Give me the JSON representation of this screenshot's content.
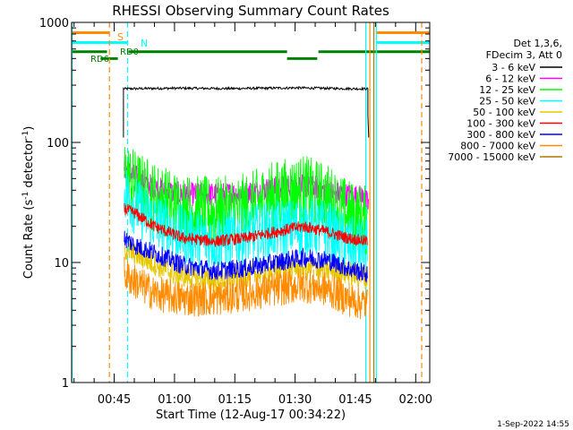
{
  "chart_data": {
    "type": "line",
    "title": "RHESSI Observing Summary Count Rates",
    "xlabel": "Start Time (12-Aug-17 00:34:22)",
    "ylabel_main": "Count Rate (s",
    "ylabel_sup1": "-1",
    "ylabel_mid": " detector",
    "ylabel_sup2": "-1",
    "ylabel_end": ")",
    "y_scale": "log",
    "ylim": [
      1,
      1000
    ],
    "xlim_minutes": [
      34.4,
      123.5
    ],
    "x_ticks": [
      {
        "minute": 45,
        "label": "00:45"
      },
      {
        "minute": 60,
        "label": "01:00"
      },
      {
        "minute": 75,
        "label": "01:15"
      },
      {
        "minute": 90,
        "label": "01:30"
      },
      {
        "minute": 105,
        "label": "01:45"
      },
      {
        "minute": 120,
        "label": "02:00"
      }
    ],
    "y_ticks": [
      {
        "value": 1,
        "label": "1"
      },
      {
        "value": 10,
        "label": "10"
      },
      {
        "value": 100,
        "label": "100"
      },
      {
        "value": 1000,
        "label": "1000"
      }
    ],
    "legend": {
      "placement": "right",
      "header": [
        "Det 1,3,6,",
        "FDecim 3, Att 0"
      ],
      "entries": [
        {
          "label": "3 - 6 keV",
          "color": "#000000"
        },
        {
          "label": "6 - 12 keV",
          "color": "#ff00ff"
        },
        {
          "label": "12 - 25 keV",
          "color": "#00ff00"
        },
        {
          "label": "25 - 50 keV",
          "color": "#00ffff"
        },
        {
          "label": "50 - 100 keV",
          "color": "#e6c800"
        },
        {
          "label": "100 - 300 keV",
          "color": "#ff0000"
        },
        {
          "label": "300 - 800 keV",
          "color": "#0000ff"
        },
        {
          "label": "800 - 7000 keV",
          "color": "#ff8c00"
        },
        {
          "label": "7000 - 15000 keV",
          "color": "#b07800"
        }
      ]
    },
    "series": [
      {
        "band": "3 - 6 keV",
        "color": "#000000",
        "noise": 0.02,
        "points": [
          [
            47.3,
            110
          ],
          [
            47.3,
            280
          ],
          [
            60,
            283
          ],
          [
            75,
            281
          ],
          [
            90,
            285
          ],
          [
            105,
            280
          ],
          [
            108.1,
            280
          ],
          [
            108.1,
            170
          ],
          [
            108.3,
            110
          ]
        ]
      },
      {
        "band": "6 - 12 keV",
        "color": "#ff00ff",
        "noise": 0.1,
        "points": [
          [
            47.5,
            62
          ],
          [
            49,
            55
          ],
          [
            55,
            42
          ],
          [
            62,
            37
          ],
          [
            70,
            37
          ],
          [
            78,
            38
          ],
          [
            85,
            42
          ],
          [
            90,
            44
          ],
          [
            95,
            42
          ],
          [
            100,
            38
          ],
          [
            107,
            35
          ],
          [
            108.3,
            30
          ]
        ]
      },
      {
        "band": "12 - 25 keV",
        "color": "#00ff00",
        "noise": 0.3,
        "points": [
          [
            47.5,
            55
          ],
          [
            50,
            45
          ],
          [
            55,
            35
          ],
          [
            62,
            28
          ],
          [
            70,
            26
          ],
          [
            78,
            28
          ],
          [
            85,
            36
          ],
          [
            92,
            40
          ],
          [
            98,
            34
          ],
          [
            103,
            25
          ],
          [
            108,
            22
          ]
        ]
      },
      {
        "band": "25 - 50 keV",
        "color": "#00ffff",
        "noise": 0.25,
        "points": [
          [
            47.5,
            40
          ],
          [
            50,
            30
          ],
          [
            55,
            22
          ],
          [
            62,
            17
          ],
          [
            70,
            15
          ],
          [
            78,
            17
          ],
          [
            85,
            19
          ],
          [
            92,
            20
          ],
          [
            98,
            19
          ],
          [
            103,
            14
          ],
          [
            108,
            13
          ]
        ]
      },
      {
        "band": "100 - 300 keV",
        "color": "#ff0000",
        "noise": 0.05,
        "points": [
          [
            47.5,
            28
          ],
          [
            50,
            26
          ],
          [
            55,
            20
          ],
          [
            62,
            16
          ],
          [
            70,
            15
          ],
          [
            78,
            16
          ],
          [
            85,
            18
          ],
          [
            92,
            20
          ],
          [
            98,
            18
          ],
          [
            103,
            16
          ],
          [
            108,
            15
          ]
        ]
      },
      {
        "band": "50 - 100 keV",
        "color": "#e6c800",
        "noise": 0.1,
        "points": [
          [
            47.5,
            13
          ],
          [
            52,
            11
          ],
          [
            60,
            8
          ],
          [
            70,
            7
          ],
          [
            80,
            8
          ],
          [
            88,
            9
          ],
          [
            95,
            9
          ],
          [
            100,
            8.5
          ],
          [
            108,
            7.5
          ]
        ]
      },
      {
        "band": "300 - 800 keV",
        "color": "#0000ff",
        "noise": 0.08,
        "points": [
          [
            47.5,
            16
          ],
          [
            50,
            14
          ],
          [
            55,
            12
          ],
          [
            62,
            9.5
          ],
          [
            70,
            8.5
          ],
          [
            78,
            9
          ],
          [
            85,
            10
          ],
          [
            92,
            11
          ],
          [
            98,
            10.5
          ],
          [
            103,
            9
          ],
          [
            108,
            8
          ]
        ]
      },
      {
        "band": "800 - 7000 keV",
        "color": "#ff8c00",
        "noise": 0.15,
        "points": [
          [
            47.5,
            8
          ],
          [
            50,
            7
          ],
          [
            55,
            5.5
          ],
          [
            62,
            5
          ],
          [
            70,
            5
          ],
          [
            78,
            5.5
          ],
          [
            85,
            6
          ],
          [
            92,
            6.5
          ],
          [
            98,
            6
          ],
          [
            103,
            5
          ],
          [
            108,
            4.5
          ]
        ]
      }
    ],
    "flags": {
      "vertical_lines": [
        {
          "minute": 34.5,
          "color": "#00ffff",
          "style": "solid"
        },
        {
          "minute": 43.8,
          "color": "#ff8c00",
          "style": "dashed"
        },
        {
          "minute": 48.3,
          "color": "#00ffff",
          "style": "dashed"
        },
        {
          "minute": 107.6,
          "color": "#00ffff",
          "style": "solid"
        },
        {
          "minute": 108.6,
          "color": "#ff8c00",
          "style": "solid"
        },
        {
          "minute": 109.6,
          "color": "#b07800",
          "style": "solid"
        },
        {
          "minute": 110.2,
          "color": "#00ffff",
          "style": "solid"
        },
        {
          "minute": 121.5,
          "color": "#ff8c00",
          "style": "dashed"
        }
      ],
      "saa_label": "S",
      "night_label": "N",
      "rd0_label": "RD0",
      "rd6_label": "RD6",
      "bars": [
        {
          "from": 34.4,
          "to": 43.8,
          "level_value": 820,
          "color": "#ff8c00"
        },
        {
          "from": 110.2,
          "to": 123.5,
          "level_value": 820,
          "color": "#ff8c00"
        },
        {
          "from": 34.4,
          "to": 48.3,
          "level_value": 680,
          "color": "#00ffff"
        },
        {
          "from": 110.2,
          "to": 123.5,
          "level_value": 680,
          "color": "#00ffff"
        },
        {
          "from": 34.4,
          "to": 43.2,
          "level_value": 570,
          "color": "#008000"
        },
        {
          "from": 48.5,
          "to": 88.0,
          "level_value": 570,
          "color": "#008000"
        },
        {
          "from": 88.0,
          "to": 95.5,
          "level_value": 500,
          "color": "#008000"
        },
        {
          "from": 95.8,
          "to": 123.5,
          "level_value": 570,
          "color": "#008000"
        },
        {
          "from": 41.6,
          "to": 45.9,
          "level_value": 500,
          "color": "#008000"
        }
      ]
    }
  },
  "footer_timestamp": "1-Sep-2022 14:55"
}
